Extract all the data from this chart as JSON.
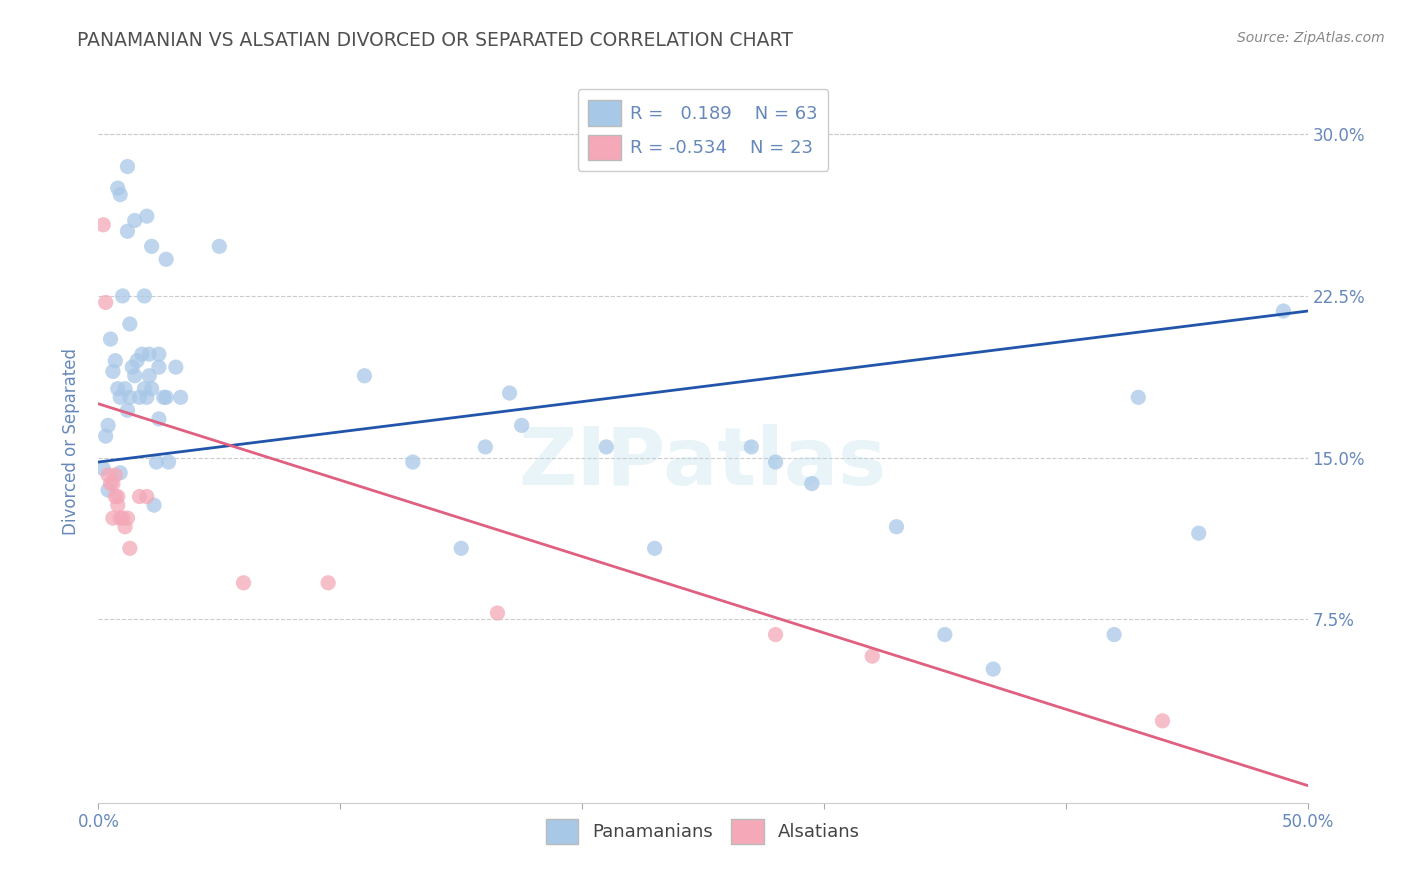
{
  "title": "PANAMANIAN VS ALSATIAN DIVORCED OR SEPARATED CORRELATION CHART",
  "source": "Source: ZipAtlas.com",
  "ylabel": "Divorced or Separated",
  "xlim": [
    0.0,
    0.5
  ],
  "ylim": [
    -0.01,
    0.325
  ],
  "yticks_right": [
    0.075,
    0.15,
    0.225,
    0.3
  ],
  "ytick_labels_right": [
    "7.5%",
    "15.0%",
    "22.5%",
    "30.0%"
  ],
  "xtick_vals": [
    0.0,
    0.1,
    0.2,
    0.3,
    0.4,
    0.5
  ],
  "xtick_labels": [
    "0.0%",
    "",
    "",
    "",
    "",
    "50.0%"
  ],
  "r_blue": 0.189,
  "n_blue": 63,
  "r_pink": -0.534,
  "n_pink": 23,
  "blue_color": "#a8c8e8",
  "pink_color": "#f4a8b8",
  "line_blue": "#2255aa",
  "line_pink": "#e06080",
  "watermark": "ZIPatlas",
  "legend_labels": [
    "Panamanians",
    "Alsatians"
  ],
  "blue_scatter": [
    [
      0.002,
      0.145
    ],
    [
      0.004,
      0.165
    ],
    [
      0.003,
      0.16
    ],
    [
      0.004,
      0.135
    ],
    [
      0.005,
      0.205
    ],
    [
      0.006,
      0.19
    ],
    [
      0.007,
      0.195
    ],
    [
      0.008,
      0.182
    ],
    [
      0.009,
      0.178
    ],
    [
      0.009,
      0.143
    ],
    [
      0.01,
      0.225
    ],
    [
      0.011,
      0.182
    ],
    [
      0.012,
      0.172
    ],
    [
      0.012,
      0.255
    ],
    [
      0.013,
      0.212
    ],
    [
      0.013,
      0.178
    ],
    [
      0.014,
      0.192
    ],
    [
      0.015,
      0.188
    ],
    [
      0.016,
      0.195
    ],
    [
      0.017,
      0.178
    ],
    [
      0.018,
      0.198
    ],
    [
      0.019,
      0.182
    ],
    [
      0.019,
      0.225
    ],
    [
      0.02,
      0.178
    ],
    [
      0.021,
      0.188
    ],
    [
      0.021,
      0.198
    ],
    [
      0.022,
      0.182
    ],
    [
      0.023,
      0.128
    ],
    [
      0.024,
      0.148
    ],
    [
      0.025,
      0.192
    ],
    [
      0.025,
      0.168
    ],
    [
      0.027,
      0.178
    ],
    [
      0.028,
      0.178
    ],
    [
      0.029,
      0.148
    ],
    [
      0.032,
      0.192
    ],
    [
      0.034,
      0.178
    ],
    [
      0.009,
      0.272
    ],
    [
      0.012,
      0.285
    ],
    [
      0.02,
      0.262
    ],
    [
      0.022,
      0.248
    ],
    [
      0.028,
      0.242
    ],
    [
      0.05,
      0.248
    ],
    [
      0.008,
      0.275
    ],
    [
      0.015,
      0.26
    ],
    [
      0.11,
      0.188
    ],
    [
      0.13,
      0.148
    ],
    [
      0.15,
      0.108
    ],
    [
      0.16,
      0.155
    ],
    [
      0.17,
      0.18
    ],
    [
      0.175,
      0.165
    ],
    [
      0.21,
      0.155
    ],
    [
      0.23,
      0.108
    ],
    [
      0.27,
      0.155
    ],
    [
      0.28,
      0.148
    ],
    [
      0.295,
      0.138
    ],
    [
      0.33,
      0.118
    ],
    [
      0.35,
      0.068
    ],
    [
      0.37,
      0.052
    ],
    [
      0.42,
      0.068
    ],
    [
      0.43,
      0.178
    ],
    [
      0.455,
      0.115
    ],
    [
      0.49,
      0.218
    ],
    [
      0.025,
      0.198
    ]
  ],
  "pink_scatter": [
    [
      0.002,
      0.258
    ],
    [
      0.003,
      0.222
    ],
    [
      0.004,
      0.142
    ],
    [
      0.005,
      0.138
    ],
    [
      0.006,
      0.138
    ],
    [
      0.006,
      0.122
    ],
    [
      0.007,
      0.132
    ],
    [
      0.007,
      0.142
    ],
    [
      0.008,
      0.132
    ],
    [
      0.008,
      0.128
    ],
    [
      0.009,
      0.122
    ],
    [
      0.01,
      0.122
    ],
    [
      0.011,
      0.118
    ],
    [
      0.012,
      0.122
    ],
    [
      0.013,
      0.108
    ],
    [
      0.017,
      0.132
    ],
    [
      0.02,
      0.132
    ],
    [
      0.06,
      0.092
    ],
    [
      0.095,
      0.092
    ],
    [
      0.165,
      0.078
    ],
    [
      0.28,
      0.068
    ],
    [
      0.32,
      0.058
    ],
    [
      0.44,
      0.028
    ]
  ],
  "blue_line_x": [
    0.0,
    0.5
  ],
  "blue_line_y": [
    0.148,
    0.218
  ],
  "pink_line_x": [
    0.0,
    0.5
  ],
  "pink_line_y": [
    0.175,
    -0.002
  ],
  "background_color": "#ffffff",
  "grid_color": "#cccccc",
  "title_color": "#505050",
  "axis_label_color": "#6688bb",
  "tick_color": "#6688bb"
}
